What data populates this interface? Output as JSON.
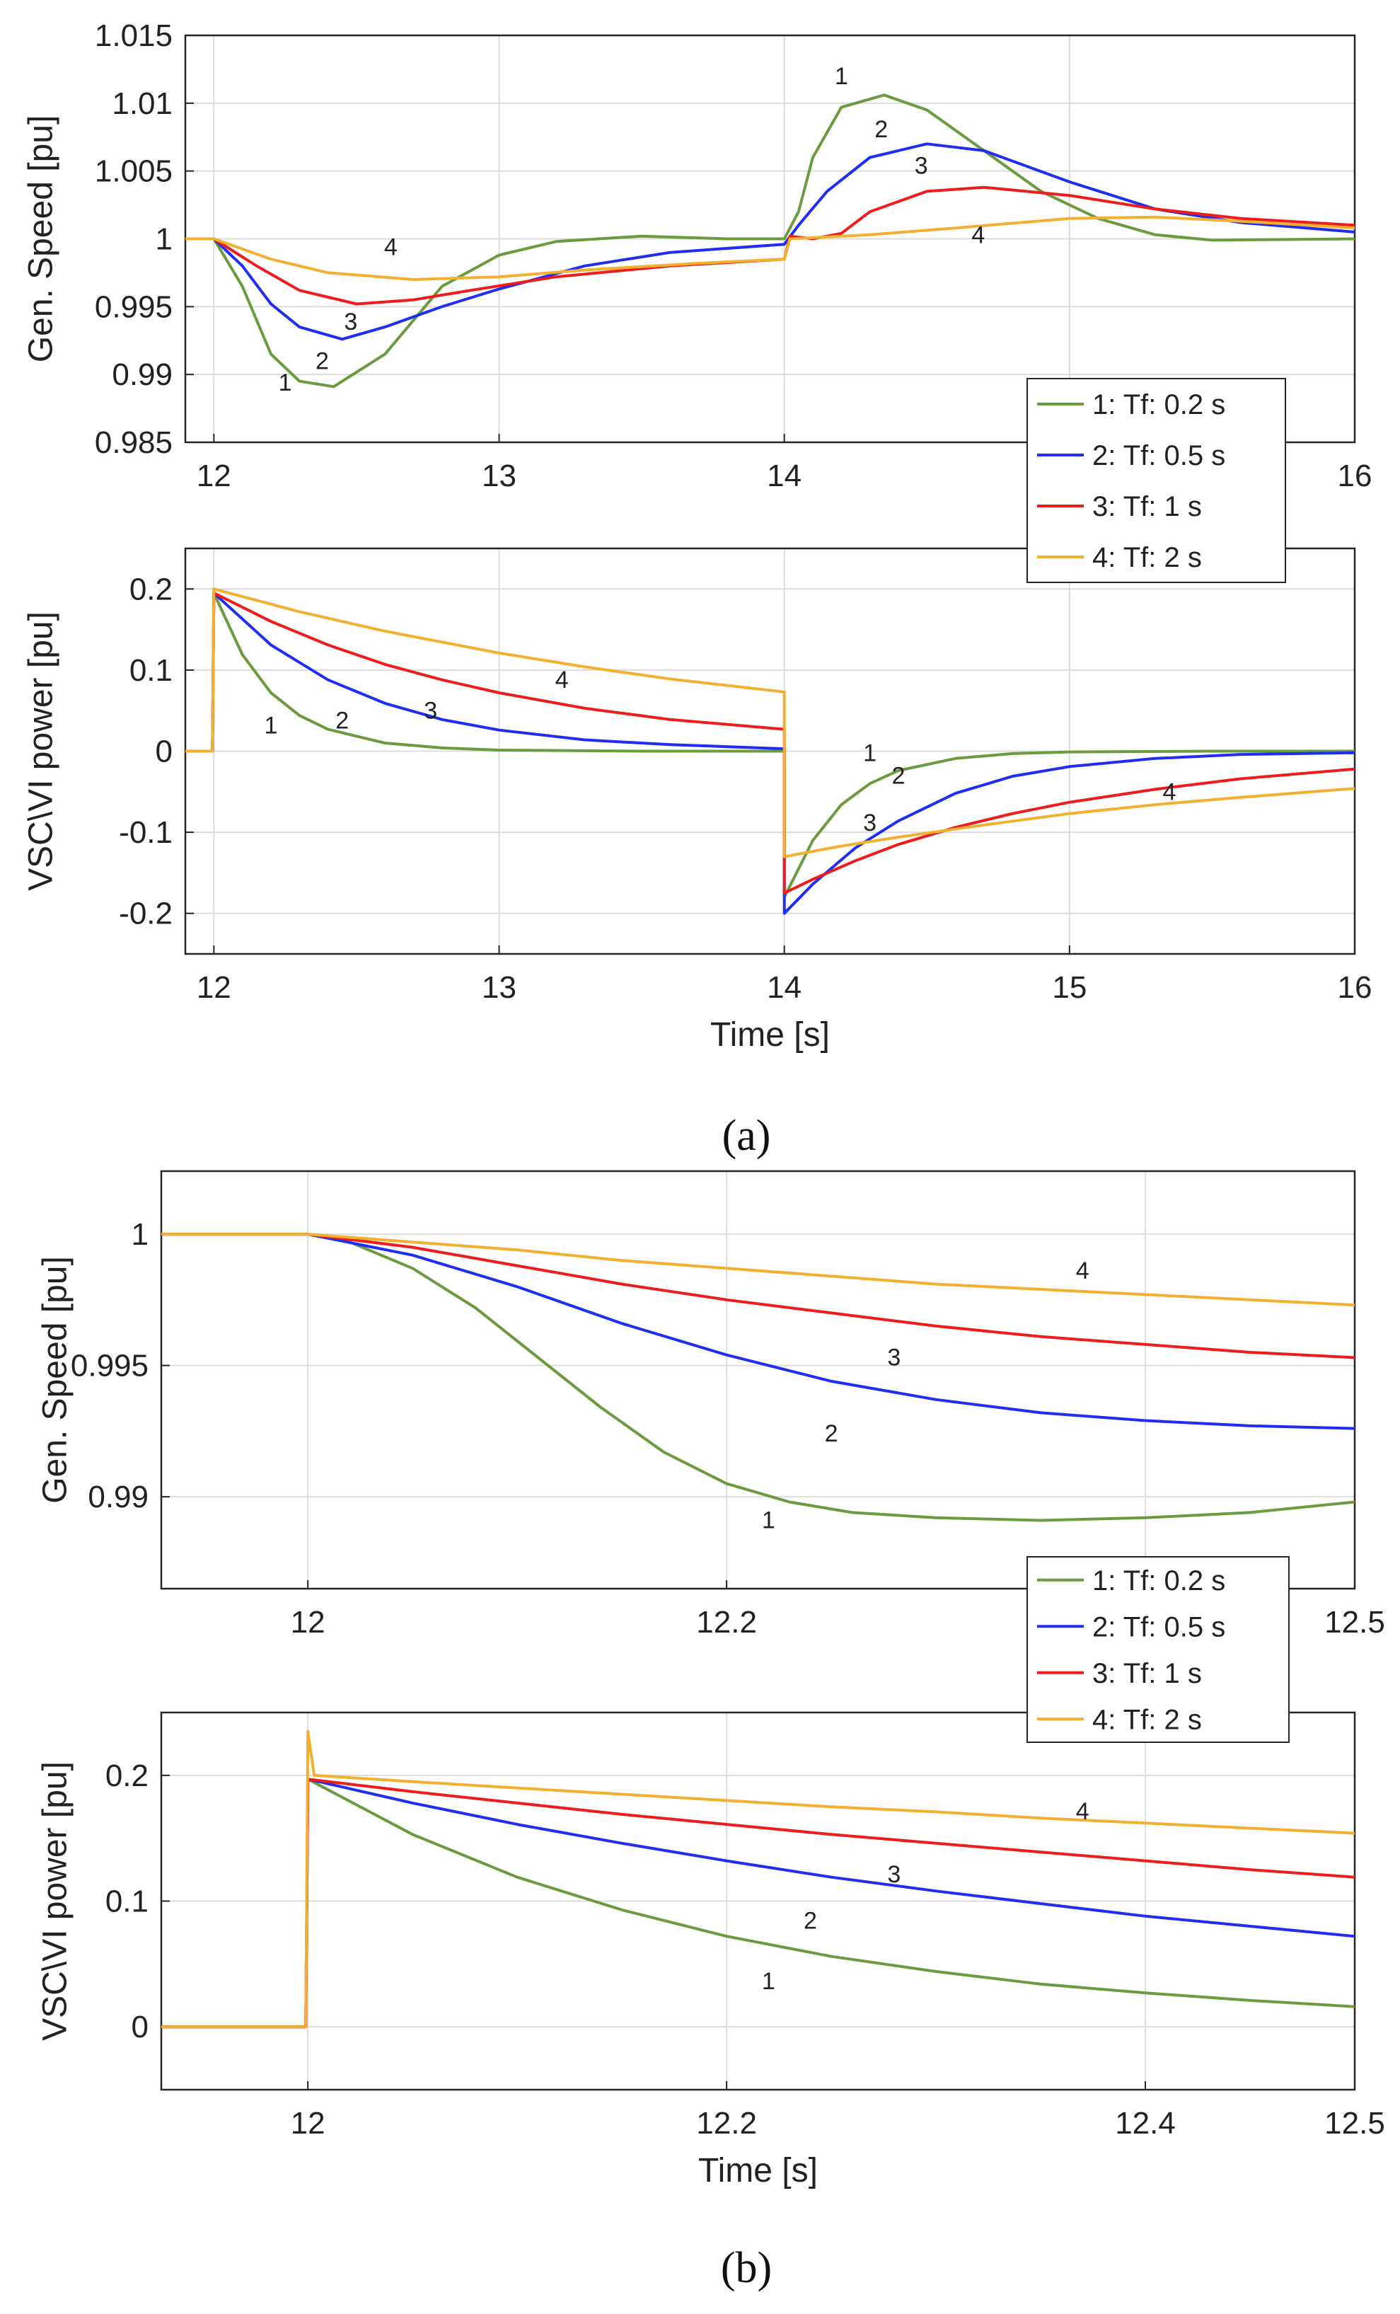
{
  "panels": [
    {
      "caption": "(a)"
    },
    {
      "caption": "(b)"
    }
  ],
  "legend_entries": [
    {
      "label": "1: Tf: 0.2 s",
      "color": "#6B9A3F"
    },
    {
      "label": "2: Tf: 0.5 s",
      "color": "#1F2EF0"
    },
    {
      "label": "3: Tf: 1 s",
      "color": "#EE1C1C"
    },
    {
      "label": "4: Tf: 2 s",
      "color": "#F2B030"
    }
  ],
  "chart_data": [
    {
      "id": "a-speed",
      "type": "line",
      "title": "",
      "xlabel": "",
      "ylabel": "Gen. Speed [pu]",
      "xlim": [
        11.9,
        16
      ],
      "ylim": [
        0.985,
        1.015
      ],
      "xticks": [
        12,
        13,
        14,
        15,
        16
      ],
      "xtick_labels": [
        "12",
        "13",
        "14",
        "",
        "16"
      ],
      "yticks": [
        0.985,
        0.99,
        0.995,
        1,
        1.005,
        1.01,
        1.015
      ],
      "ytick_labels": [
        "0.985",
        "0.99",
        "0.995",
        "1",
        "1.005",
        "1.01",
        "1.015"
      ],
      "grid": true,
      "legend": "bottom-right",
      "series": [
        {
          "name": "1: Tf: 0.2 s",
          "color": "#6B9A3F",
          "x": [
            11.9,
            12,
            12.1,
            12.2,
            12.3,
            12.42,
            12.6,
            12.8,
            13,
            13.2,
            13.5,
            13.8,
            14,
            14.05,
            14.1,
            14.2,
            14.35,
            14.5,
            14.7,
            14.9,
            15.1,
            15.3,
            15.5,
            16
          ],
          "y": [
            1.0,
            1.0,
            0.9965,
            0.9915,
            0.9895,
            0.9891,
            0.9915,
            0.9965,
            0.9988,
            0.9998,
            1.0002,
            1.0,
            1.0,
            1.002,
            1.006,
            1.0097,
            1.0106,
            1.0095,
            1.0065,
            1.0035,
            1.0015,
            1.0003,
            0.9999,
            1.0
          ]
        },
        {
          "name": "2: Tf: 0.5 s",
          "color": "#1F2EF0",
          "x": [
            11.9,
            12,
            12.1,
            12.2,
            12.3,
            12.45,
            12.6,
            12.8,
            13,
            13.3,
            13.6,
            14,
            14.05,
            14.15,
            14.3,
            14.5,
            14.7,
            15,
            15.3,
            15.6,
            16
          ],
          "y": [
            1.0,
            1.0,
            0.998,
            0.9952,
            0.9935,
            0.9926,
            0.9935,
            0.995,
            0.9963,
            0.998,
            0.999,
            0.9996,
            1.001,
            1.0035,
            1.006,
            1.007,
            1.0065,
            1.0042,
            1.0022,
            1.0012,
            1.0005
          ]
        },
        {
          "name": "3: Tf: 1 s",
          "color": "#EE1C1C",
          "x": [
            11.9,
            12,
            12.15,
            12.3,
            12.5,
            12.7,
            12.9,
            13.2,
            13.6,
            14,
            14.02,
            14.1,
            14.2,
            14.3,
            14.5,
            14.7,
            15,
            15.3,
            15.6,
            16
          ],
          "y": [
            1.0,
            1.0,
            0.998,
            0.9962,
            0.9952,
            0.9955,
            0.9962,
            0.9972,
            0.998,
            0.9985,
            1.0002,
            1.0,
            1.0004,
            1.002,
            1.0035,
            1.0038,
            1.0032,
            1.0022,
            1.0015,
            1.001
          ]
        },
        {
          "name": "4: Tf: 2 s",
          "color": "#F2B030",
          "x": [
            11.9,
            12,
            12.2,
            12.4,
            12.7,
            13,
            13.3,
            13.7,
            14,
            14.02,
            14.3,
            14.6,
            15,
            15.3,
            15.6,
            16
          ],
          "y": [
            1.0,
            1.0,
            0.9985,
            0.9975,
            0.997,
            0.9972,
            0.9977,
            0.9982,
            0.9985,
            1.0,
            1.0003,
            1.0008,
            1.0015,
            1.0016,
            1.0013,
            1.0008
          ]
        }
      ],
      "annotations": [
        {
          "text": "1",
          "x": 12.25,
          "y": 0.9888
        },
        {
          "text": "2",
          "x": 12.38,
          "y": 0.9904
        },
        {
          "text": "3",
          "x": 12.48,
          "y": 0.9933
        },
        {
          "text": "4",
          "x": 12.62,
          "y": 0.9988
        },
        {
          "text": "1",
          "x": 14.2,
          "y": 1.0114
        },
        {
          "text": "2",
          "x": 14.34,
          "y": 1.0075
        },
        {
          "text": "3",
          "x": 14.48,
          "y": 1.0048
        },
        {
          "text": "4",
          "x": 14.68,
          "y": 0.9997
        }
      ]
    },
    {
      "id": "a-power",
      "type": "line",
      "title": "",
      "xlabel": "Time [s]",
      "ylabel": "VSC\\VI power [pu]",
      "xlim": [
        11.9,
        16
      ],
      "ylim": [
        -0.25,
        0.25
      ],
      "xticks": [
        12,
        13,
        14,
        15,
        16
      ],
      "xtick_labels": [
        "12",
        "13",
        "14",
        "15",
        "16"
      ],
      "yticks": [
        -0.2,
        -0.1,
        0,
        0.1,
        0.2
      ],
      "ytick_labels": [
        "-0.2",
        "-0.1",
        "0",
        "0.1",
        "0.2"
      ],
      "grid": true,
      "series": [
        {
          "name": "1: Tf: 0.2 s",
          "color": "#6B9A3F",
          "x": [
            11.9,
            11.995,
            12,
            12.1,
            12.2,
            12.3,
            12.4,
            12.6,
            12.8,
            13,
            13.5,
            14,
            14,
            14.1,
            14.2,
            14.3,
            14.4,
            14.6,
            14.8,
            15,
            15.5,
            16
          ],
          "y": [
            0,
            0,
            0.195,
            0.119,
            0.072,
            0.044,
            0.027,
            0.01,
            0.004,
            0.0013,
            0,
            0,
            -0.18,
            -0.11,
            -0.066,
            -0.04,
            -0.024,
            -0.009,
            -0.003,
            -0.001,
            0,
            0
          ]
        },
        {
          "name": "2: Tf: 0.5 s",
          "color": "#1F2EF0",
          "x": [
            11.9,
            11.995,
            12,
            12.2,
            12.4,
            12.6,
            12.8,
            13,
            13.3,
            13.6,
            14,
            14,
            14.1,
            14.25,
            14.4,
            14.6,
            14.8,
            15,
            15.3,
            15.6,
            16
          ],
          "y": [
            0,
            0,
            0.195,
            0.131,
            0.088,
            0.059,
            0.039,
            0.026,
            0.014,
            0.008,
            0.003,
            -0.2,
            -0.164,
            -0.119,
            -0.086,
            -0.052,
            -0.031,
            -0.019,
            -0.009,
            -0.004,
            -0.002
          ]
        },
        {
          "name": "3: Tf: 1 s",
          "color": "#EE1C1C",
          "x": [
            11.9,
            11.995,
            12,
            12.2,
            12.4,
            12.6,
            12.8,
            13,
            13.3,
            13.6,
            14,
            14,
            14.1,
            14.25,
            14.4,
            14.6,
            14.8,
            15,
            15.3,
            15.6,
            16
          ],
          "y": [
            0,
            0,
            0.195,
            0.16,
            0.131,
            0.107,
            0.088,
            0.072,
            0.053,
            0.039,
            0.027,
            -0.175,
            -0.158,
            -0.135,
            -0.115,
            -0.094,
            -0.077,
            -0.063,
            -0.047,
            -0.034,
            -0.022
          ]
        },
        {
          "name": "4: Tf: 2 s",
          "color": "#F2B030",
          "x": [
            11.9,
            11.995,
            12,
            12.3,
            12.6,
            13,
            13.3,
            13.6,
            14,
            14,
            14.2,
            14.4,
            14.7,
            15,
            15.3,
            15.6,
            16
          ],
          "y": [
            0,
            0,
            0.2,
            0.172,
            0.148,
            0.121,
            0.104,
            0.089,
            0.073,
            -0.13,
            -0.117,
            -0.106,
            -0.091,
            -0.077,
            -0.066,
            -0.057,
            -0.046
          ]
        }
      ],
      "annotations": [
        {
          "text": "1",
          "x": 12.2,
          "y": 0.022
        },
        {
          "text": "2",
          "x": 12.45,
          "y": 0.028
        },
        {
          "text": "3",
          "x": 12.76,
          "y": 0.04
        },
        {
          "text": "4",
          "x": 13.22,
          "y": 0.078
        },
        {
          "text": "1",
          "x": 14.3,
          "y": -0.012
        },
        {
          "text": "2",
          "x": 14.4,
          "y": -0.04
        },
        {
          "text": "3",
          "x": 14.3,
          "y": -0.098
        },
        {
          "text": "4",
          "x": 15.35,
          "y": -0.06
        }
      ]
    },
    {
      "id": "b-speed",
      "type": "line",
      "title": "",
      "xlabel": "",
      "ylabel": "Gen. Speed [pu]",
      "xlim": [
        11.93,
        12.5
      ],
      "ylim": [
        0.9865,
        1.0024
      ],
      "xticks": [
        12,
        12.2,
        12.4,
        12.5
      ],
      "xtick_labels": [
        "12",
        "12.2",
        "",
        "12.5"
      ],
      "yticks": [
        0.99,
        0.995,
        1
      ],
      "ytick_labels": [
        "0.99",
        "0.995",
        "1"
      ],
      "grid": true,
      "legend": "bottom-right",
      "series": [
        {
          "name": "1: Tf: 0.2 s",
          "color": "#6B9A3F",
          "x": [
            11.93,
            12,
            12.02,
            12.05,
            12.08,
            12.11,
            12.14,
            12.17,
            12.2,
            12.23,
            12.26,
            12.3,
            12.35,
            12.4,
            12.45,
            12.5
          ],
          "y": [
            1.0,
            1.0,
            0.9997,
            0.9987,
            0.9972,
            0.9953,
            0.9934,
            0.9917,
            0.9905,
            0.9898,
            0.9894,
            0.9892,
            0.9891,
            0.9892,
            0.9894,
            0.9898
          ]
        },
        {
          "name": "2: Tf: 0.5 s",
          "color": "#1F2EF0",
          "x": [
            11.93,
            12,
            12.05,
            12.1,
            12.15,
            12.2,
            12.25,
            12.3,
            12.35,
            12.4,
            12.45,
            12.5
          ],
          "y": [
            1.0,
            1.0,
            0.9992,
            0.998,
            0.9966,
            0.9954,
            0.9944,
            0.9937,
            0.9932,
            0.9929,
            0.9927,
            0.9926
          ]
        },
        {
          "name": "3: Tf: 1 s",
          "color": "#EE1C1C",
          "x": [
            11.93,
            12,
            12.05,
            12.1,
            12.15,
            12.2,
            12.25,
            12.3,
            12.35,
            12.4,
            12.45,
            12.5
          ],
          "y": [
            1.0,
            1.0,
            0.9995,
            0.9988,
            0.9981,
            0.9975,
            0.997,
            0.9965,
            0.9961,
            0.9958,
            0.9955,
            0.9953
          ]
        },
        {
          "name": "4: Tf: 2 s",
          "color": "#F2B030",
          "x": [
            11.93,
            12,
            12.05,
            12.1,
            12.15,
            12.2,
            12.25,
            12.3,
            12.35,
            12.4,
            12.45,
            12.5
          ],
          "y": [
            1.0,
            1.0,
            0.9997,
            0.9994,
            0.999,
            0.9987,
            0.9984,
            0.9981,
            0.9979,
            0.9977,
            0.9975,
            0.9973
          ]
        }
      ],
      "annotations": [
        {
          "text": "1",
          "x": 12.22,
          "y": 0.9888
        },
        {
          "text": "2",
          "x": 12.25,
          "y": 0.9921
        },
        {
          "text": "3",
          "x": 12.28,
          "y": 0.995
        },
        {
          "text": "4",
          "x": 12.37,
          "y": 0.9983
        }
      ]
    },
    {
      "id": "b-power",
      "type": "line",
      "title": "",
      "xlabel": "Time [s]",
      "ylabel": "VSC\\VI power [pu]",
      "xlim": [
        11.93,
        12.5
      ],
      "ylim": [
        -0.05,
        0.25
      ],
      "xticks": [
        12,
        12.2,
        12.4,
        12.5
      ],
      "xtick_labels": [
        "12",
        "12.2",
        "12.4",
        "12.5"
      ],
      "yticks": [
        0,
        0.1,
        0.2
      ],
      "ytick_labels": [
        "0",
        "0.1",
        "0.2"
      ],
      "grid": true,
      "series": [
        {
          "name": "1: Tf: 0.2 s",
          "color": "#6B9A3F",
          "x": [
            11.93,
            11.999,
            12,
            12.05,
            12.1,
            12.15,
            12.2,
            12.25,
            12.3,
            12.35,
            12.4,
            12.45,
            12.5
          ],
          "y": [
            0,
            0,
            0.197,
            0.153,
            0.119,
            0.093,
            0.072,
            0.056,
            0.044,
            0.034,
            0.027,
            0.021,
            0.016
          ]
        },
        {
          "name": "2: Tf: 0.5 s",
          "color": "#1F2EF0",
          "x": [
            11.93,
            11.999,
            12,
            12.05,
            12.1,
            12.15,
            12.2,
            12.25,
            12.3,
            12.35,
            12.4,
            12.45,
            12.5
          ],
          "y": [
            0,
            0,
            0.197,
            0.178,
            0.161,
            0.146,
            0.132,
            0.119,
            0.108,
            0.098,
            0.088,
            0.08,
            0.072
          ]
        },
        {
          "name": "3: Tf: 1 s",
          "color": "#EE1C1C",
          "x": [
            11.93,
            11.999,
            12,
            12.05,
            12.1,
            12.15,
            12.2,
            12.25,
            12.3,
            12.35,
            12.4,
            12.45,
            12.5
          ],
          "y": [
            0,
            0,
            0.197,
            0.187,
            0.178,
            0.169,
            0.161,
            0.153,
            0.146,
            0.139,
            0.132,
            0.125,
            0.119
          ]
        },
        {
          "name": "4: Tf: 2 s",
          "color": "#F2B030",
          "x": [
            11.93,
            11.999,
            12,
            12.003,
            12.05,
            12.1,
            12.15,
            12.2,
            12.25,
            12.3,
            12.35,
            12.4,
            12.45,
            12.5
          ],
          "y": [
            0,
            0,
            0.235,
            0.2,
            0.195,
            0.19,
            0.185,
            0.18,
            0.175,
            0.171,
            0.166,
            0.162,
            0.158,
            0.154
          ]
        }
      ],
      "annotations": [
        {
          "text": "1",
          "x": 12.22,
          "y": 0.03
        },
        {
          "text": "2",
          "x": 12.24,
          "y": 0.078
        },
        {
          "text": "3",
          "x": 12.28,
          "y": 0.115
        },
        {
          "text": "4",
          "x": 12.37,
          "y": 0.165
        }
      ]
    }
  ]
}
